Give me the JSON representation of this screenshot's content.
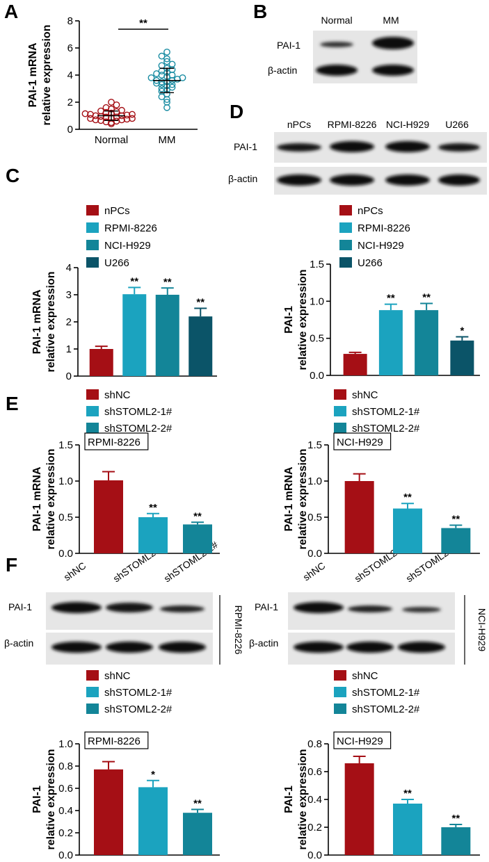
{
  "panels": {
    "a": "A",
    "b": "B",
    "c": "C",
    "d": "D",
    "e": "E",
    "f": "F"
  },
  "colors": {
    "red": "#a50f15",
    "light_teal": "#1ba3bf",
    "mid_teal": "#138598",
    "dark_teal": "#0b5468",
    "scatter_normal": "#a50f15",
    "scatter_mm": "#1b8da3"
  },
  "blots": {
    "b": {
      "lanes": [
        "Normal",
        "MM"
      ],
      "rows": [
        "PAI-1",
        "β-actin"
      ]
    },
    "d": {
      "lanes": [
        "nPCs",
        "RPMI-8226",
        "NCI-H929",
        "U266"
      ],
      "rows": [
        "PAI-1",
        "β-actin"
      ]
    },
    "f_left": {
      "lanes": [
        "shNC",
        "shSTOML2-1#",
        "shSTOML2-2#"
      ],
      "rows": [
        "PAI-1",
        "β-actin"
      ],
      "side": "RPMI-8226"
    },
    "f_right": {
      "lanes": [
        "shNC",
        "shSTOML2-1#",
        "shSTOML2-2#"
      ],
      "rows": [
        "PAI-1",
        "β-actin"
      ],
      "side": "NCI-H929"
    }
  },
  "legends": {
    "c": [
      "nPCs",
      "RPMI-8226",
      "NCI-H929",
      "U266"
    ],
    "e": [
      "shNC",
      "shSTOML2-1#",
      "shSTOML2-2#"
    ]
  },
  "chart_data": [
    {
      "id": "A",
      "type": "scatter",
      "ylabel": "PAI-1 mRNA relative expression",
      "ylabel_lines": [
        "PAI-1 mRNA",
        "relative expression"
      ],
      "categories": [
        "Normal",
        "MM"
      ],
      "ylim": [
        0,
        8
      ],
      "yticks": [
        "0",
        "2",
        "4",
        "6",
        "8"
      ],
      "summary": [
        {
          "name": "Normal",
          "mean": 1.0,
          "sd": 0.35
        },
        {
          "name": "MM",
          "mean": 3.6,
          "sd": 0.9
        }
      ],
      "points": {
        "Normal": [
          0.4,
          0.5,
          0.55,
          0.6,
          0.65,
          0.7,
          0.7,
          0.75,
          0.8,
          0.8,
          0.85,
          0.9,
          0.9,
          0.95,
          1.0,
          1.0,
          1.05,
          1.1,
          1.1,
          1.15,
          1.2,
          1.25,
          1.3,
          1.35,
          1.4,
          1.5,
          1.6,
          1.8,
          2.0
        ],
        "MM": [
          1.6,
          2.0,
          2.2,
          2.4,
          2.6,
          2.8,
          2.9,
          3.0,
          3.1,
          3.2,
          3.3,
          3.3,
          3.4,
          3.5,
          3.5,
          3.6,
          3.6,
          3.7,
          3.8,
          3.8,
          3.9,
          4.0,
          4.0,
          4.1,
          4.2,
          4.3,
          4.4,
          4.5,
          4.7,
          4.8,
          5.0,
          5.2,
          5.4,
          5.7
        ]
      },
      "significance": [
        {
          "label": "**"
        }
      ]
    },
    {
      "id": "C-left",
      "type": "bar",
      "ylabel": "PAI-1 mRNA relative expression",
      "ylabel_lines": [
        "PAI-1 mRNA",
        "relative expression"
      ],
      "categories": [
        "nPCs",
        "RPMI-8226",
        "NCI-H929",
        "U266"
      ],
      "values": [
        1.0,
        3.02,
        3.0,
        2.2
      ],
      "errors": [
        0.1,
        0.25,
        0.25,
        0.3
      ],
      "stars": [
        "",
        "**",
        "**",
        "**"
      ],
      "ylim": [
        0,
        4
      ],
      "yticks": [
        "0",
        "1",
        "2",
        "3",
        "4"
      ]
    },
    {
      "id": "C-right",
      "type": "bar",
      "ylabel": "PAI-1 relative expression",
      "ylabel_lines": [
        "PAI-1",
        "relative expression"
      ],
      "categories": [
        "nPCs",
        "RPMI-8226",
        "NCI-H929",
        "U266"
      ],
      "values": [
        0.29,
        0.88,
        0.88,
        0.47
      ],
      "errors": [
        0.02,
        0.08,
        0.09,
        0.05
      ],
      "stars": [
        "",
        "**",
        "**",
        "*"
      ],
      "ylim": [
        0,
        1.5
      ],
      "yticks": [
        "0.0",
        "0.5",
        "1.0",
        "1.5"
      ]
    },
    {
      "id": "E-left",
      "type": "bar",
      "ylabel": "PAI-1 mRNA relative expression",
      "ylabel_lines": [
        "PAI-1 mRNA",
        "relative expression"
      ],
      "inset": "RPMI-8226",
      "categories": [
        "shNC",
        "shSTOML2-1#",
        "shSTOML2-2#"
      ],
      "values": [
        1.01,
        0.5,
        0.4
      ],
      "errors": [
        0.12,
        0.05,
        0.03
      ],
      "stars": [
        "",
        "**",
        "**"
      ],
      "ylim": [
        0,
        1.5
      ],
      "yticks": [
        "0.0",
        "0.5",
        "1.0",
        "1.5"
      ]
    },
    {
      "id": "E-right",
      "type": "bar",
      "ylabel": "PAI-1 mRNA relative expression",
      "ylabel_lines": [
        "PAI-1 mRNA",
        "relative expression"
      ],
      "inset": "NCI-H929",
      "categories": [
        "shNC",
        "shSTOML2-1#",
        "shSTOML2-2#"
      ],
      "values": [
        1.0,
        0.62,
        0.35
      ],
      "errors": [
        0.1,
        0.07,
        0.04
      ],
      "stars": [
        "",
        "**",
        "**"
      ],
      "ylim": [
        0,
        1.5
      ],
      "yticks": [
        "0.0",
        "0.5",
        "1.0",
        "1.5"
      ]
    },
    {
      "id": "F-left",
      "type": "bar",
      "ylabel": "PAI-1 relative expression",
      "ylabel_lines": [
        "PAI-1",
        "relative expression"
      ],
      "inset": "RPMI-8226",
      "categories": [
        "shNC",
        "shSTOML2-1#",
        "shSTOML2-2#"
      ],
      "values": [
        0.77,
        0.61,
        0.38
      ],
      "errors": [
        0.07,
        0.06,
        0.03
      ],
      "stars": [
        "",
        "*",
        "**"
      ],
      "ylim": [
        0,
        1.0
      ],
      "yticks": [
        "0.0",
        "0.2",
        "0.4",
        "0.6",
        "0.8",
        "1.0"
      ]
    },
    {
      "id": "F-right",
      "type": "bar",
      "ylabel": "PAI-1 relative expression",
      "ylabel_lines": [
        "PAI-1",
        "relative expression"
      ],
      "inset": "NCI-H929",
      "categories": [
        "shNC",
        "shSTOML2-1#",
        "shSTOML2-2#"
      ],
      "values": [
        0.66,
        0.37,
        0.2
      ],
      "errors": [
        0.05,
        0.03,
        0.02
      ],
      "stars": [
        "",
        "**",
        "**"
      ],
      "ylim": [
        0,
        0.8
      ],
      "yticks": [
        "0.0",
        "0.2",
        "0.4",
        "0.6",
        "0.8"
      ]
    }
  ]
}
